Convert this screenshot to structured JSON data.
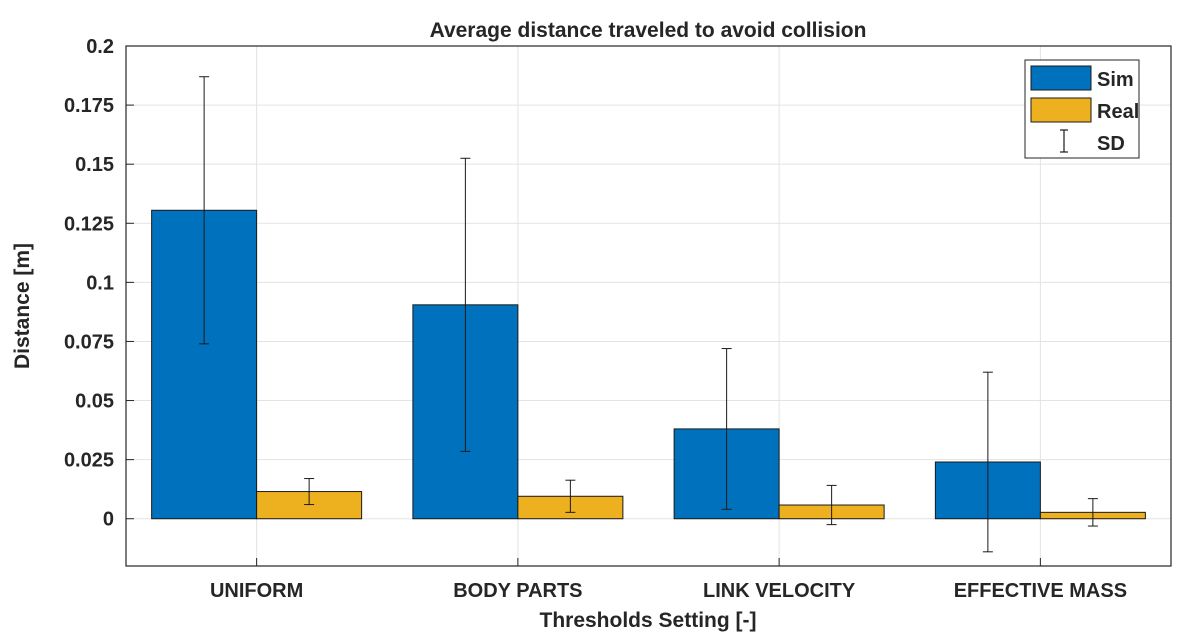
{
  "chart_data": {
    "type": "bar",
    "title": "Average distance traveled to avoid collision",
    "xlabel": "Thresholds Setting [-]",
    "ylabel": "Distance [m]",
    "ylim": [
      -0.02,
      0.2
    ],
    "yticks": [
      0,
      0.025,
      0.05,
      0.075,
      0.1,
      0.125,
      0.15,
      0.175,
      0.2
    ],
    "ytick_labels": [
      "0",
      "0.025",
      "0.05",
      "0.075",
      "0.1",
      "0.125",
      "0.15",
      "0.175",
      "0.2"
    ],
    "categories": [
      "UNIFORM",
      "BODY PARTS",
      "LINK VELOCITY",
      "EFFECTIVE MASS"
    ],
    "series": [
      {
        "name": "Sim",
        "color": "#0072BD",
        "values": [
          0.1305,
          0.0905,
          0.038,
          0.024
        ],
        "sd": [
          0.0565,
          0.062,
          0.034,
          0.038
        ]
      },
      {
        "name": "Real",
        "color": "#EDB120",
        "values": [
          0.0115,
          0.0095,
          0.0058,
          0.0027
        ],
        "sd": [
          0.0055,
          0.0068,
          0.0083,
          0.0058
        ]
      }
    ],
    "legend": {
      "position": "top-right",
      "entries": [
        "Sim",
        "Real",
        "SD"
      ]
    },
    "grid": true
  }
}
